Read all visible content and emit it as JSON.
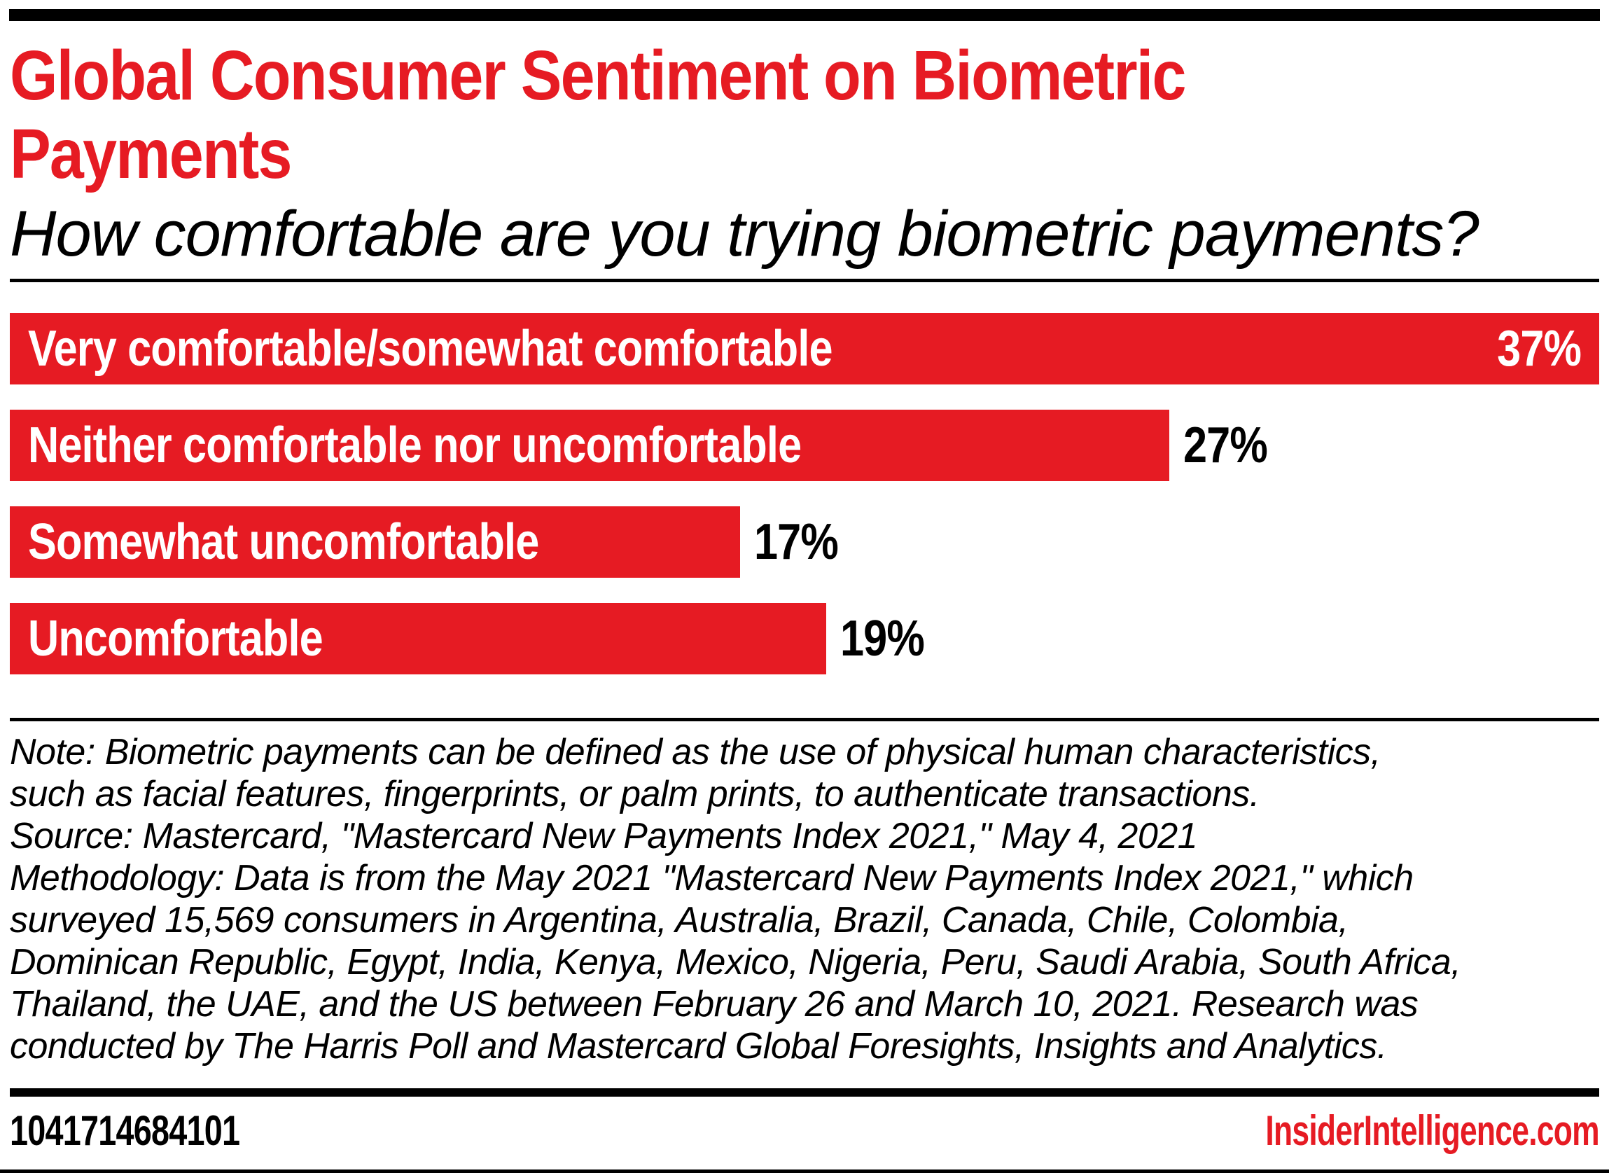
{
  "colors": {
    "accent_red": "#e61b23",
    "text_black": "#000000",
    "background": "#ffffff"
  },
  "header": {
    "title_display": "Global Consumer Sentiment on Biometric\nPayments",
    "subtitle": "How comfortable are you trying biometric payments?"
  },
  "chart_data": {
    "type": "bar",
    "orientation": "horizontal",
    "title": "Global Consumer Sentiment on Biometric Payments",
    "subtitle": "How comfortable are you trying biometric payments?",
    "unit": "%",
    "axis_max": 37,
    "grid": false,
    "legend": false,
    "categories": [
      "Very comfortable/somewhat comfortable",
      "Neither comfortable nor uncomfortable",
      "Somewhat uncomfortable",
      "Uncomfortable"
    ],
    "values": [
      37,
      27,
      17,
      19
    ],
    "value_labels": [
      "37%",
      "27%",
      "17%",
      "19%"
    ],
    "value_label_inside": [
      true,
      false,
      false,
      false
    ],
    "bar_color": "#e61b23",
    "category_label_color": "#ffffff",
    "outside_value_color": "#000000"
  },
  "notes": {
    "note": "Note: Biometric payments can be defined as the use of physical human characteristics,\nsuch as facial features, fingerprints, or palm prints, to authenticate transactions.",
    "source": "Source: Mastercard, \"Mastercard New Payments Index 2021,\" May 4, 2021",
    "methodology": "Methodology: Data is from the May 2021 \"Mastercard New Payments Index 2021,\" which\nsurveyed 15,569 consumers in Argentina, Australia, Brazil, Canada, Chile, Colombia,\nDominican Republic, Egypt, India, Kenya, Mexico, Nigeria, Peru, Saudi Arabia, South Africa,\nThailand, the UAE, and the US between February 26 and March 10, 2021. Research was\nconducted by The Harris Poll and Mastercard Global Foresights, Insights and Analytics."
  },
  "footer": {
    "chart_id": "1041714684101",
    "brand": "InsiderIntelligence.com"
  }
}
